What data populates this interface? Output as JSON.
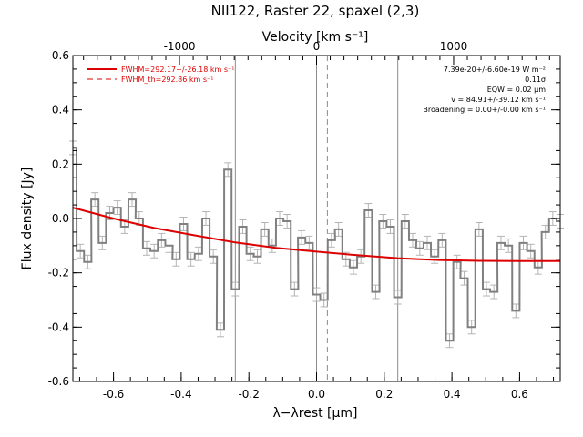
{
  "chart_data": {
    "type": "line",
    "title": "NII122, Raster 22, spaxel (2,3)",
    "top_axis_label": "Velocity [km s⁻¹]",
    "top_ticks": [
      -1000,
      0,
      1000
    ],
    "xlabel": "λ−λrest [μm]",
    "ylabel": "Flux density [Jy]",
    "xlim": [
      -0.72,
      0.72
    ],
    "ylim": [
      -0.6,
      0.6
    ],
    "xticks": [
      -0.6,
      -0.4,
      -0.2,
      0.0,
      0.2,
      0.4,
      0.6
    ],
    "yticks": [
      -0.6,
      -0.4,
      -0.2,
      0.0,
      0.2,
      0.4,
      0.6
    ],
    "vertical_lines": {
      "solid": [
        -0.24,
        0.0,
        0.24
      ],
      "dashed": [
        0.032
      ]
    },
    "legend": [
      {
        "name": "FWHM=292.17+/-26.18 km s⁻¹",
        "style": "solid"
      },
      {
        "name": "FWHM_th=292.86 km s⁻¹",
        "style": "dashed"
      }
    ],
    "annotations": [
      "7.39e-20+/-6.60e-19 W m⁻²",
      "0.11σ",
      "EQW = 0.02 μm",
      "v = 84.91+/-39.12 km s⁻¹",
      "Broadening = 0.00+/-0.00 km s⁻¹"
    ],
    "spectrum": {
      "name": "data",
      "color": "#808080",
      "bin_width": 0.0218,
      "x": [
        -0.72,
        -0.698,
        -0.676,
        -0.655,
        -0.633,
        -0.611,
        -0.589,
        -0.567,
        -0.545,
        -0.524,
        -0.502,
        -0.48,
        -0.458,
        -0.436,
        -0.415,
        -0.393,
        -0.371,
        -0.349,
        -0.327,
        -0.305,
        -0.284,
        -0.262,
        -0.24,
        -0.218,
        -0.196,
        -0.175,
        -0.153,
        -0.131,
        -0.109,
        -0.087,
        -0.065,
        -0.044,
        -0.022,
        0.0,
        0.022,
        0.044,
        0.065,
        0.087,
        0.109,
        0.131,
        0.153,
        0.175,
        0.196,
        0.218,
        0.24,
        0.262,
        0.284,
        0.305,
        0.327,
        0.349,
        0.371,
        0.393,
        0.415,
        0.436,
        0.458,
        0.48,
        0.502,
        0.524,
        0.545,
        0.567,
        0.589,
        0.611,
        0.633,
        0.655,
        0.676,
        0.698,
        0.72
      ],
      "y": [
        0.26,
        -0.12,
        -0.16,
        0.07,
        -0.09,
        0.02,
        0.04,
        -0.03,
        0.07,
        0.0,
        -0.11,
        -0.12,
        -0.08,
        -0.1,
        -0.15,
        -0.02,
        -0.15,
        -0.13,
        -0.0,
        -0.14,
        -0.41,
        0.18,
        -0.26,
        -0.03,
        -0.13,
        -0.14,
        -0.04,
        -0.1,
        -0.0,
        -0.01,
        -0.26,
        -0.07,
        -0.09,
        -0.28,
        -0.3,
        -0.08,
        -0.04,
        -0.15,
        -0.18,
        -0.14,
        0.03,
        -0.27,
        -0.01,
        -0.03,
        -0.29,
        -0.01,
        -0.08,
        -0.11,
        -0.09,
        -0.14,
        -0.08,
        -0.45,
        -0.16,
        -0.22,
        -0.4,
        -0.04,
        -0.26,
        -0.27,
        -0.09,
        -0.1,
        -0.34,
        -0.09,
        -0.12,
        -0.18,
        -0.05,
        0.0,
        -0.01
      ],
      "err": 0.025
    },
    "fit": {
      "name": "FWHM=292.17+/-26.18 km s⁻¹",
      "color": "#dd0000",
      "x": [
        -0.72,
        -0.6,
        -0.48,
        -0.36,
        -0.24,
        -0.12,
        0.0,
        0.12,
        0.24,
        0.36,
        0.48,
        0.6,
        0.72
      ],
      "y": [
        0.04,
        0.0,
        -0.035,
        -0.062,
        -0.088,
        -0.108,
        -0.122,
        -0.135,
        -0.146,
        -0.153,
        -0.156,
        -0.157,
        -0.157
      ]
    }
  }
}
